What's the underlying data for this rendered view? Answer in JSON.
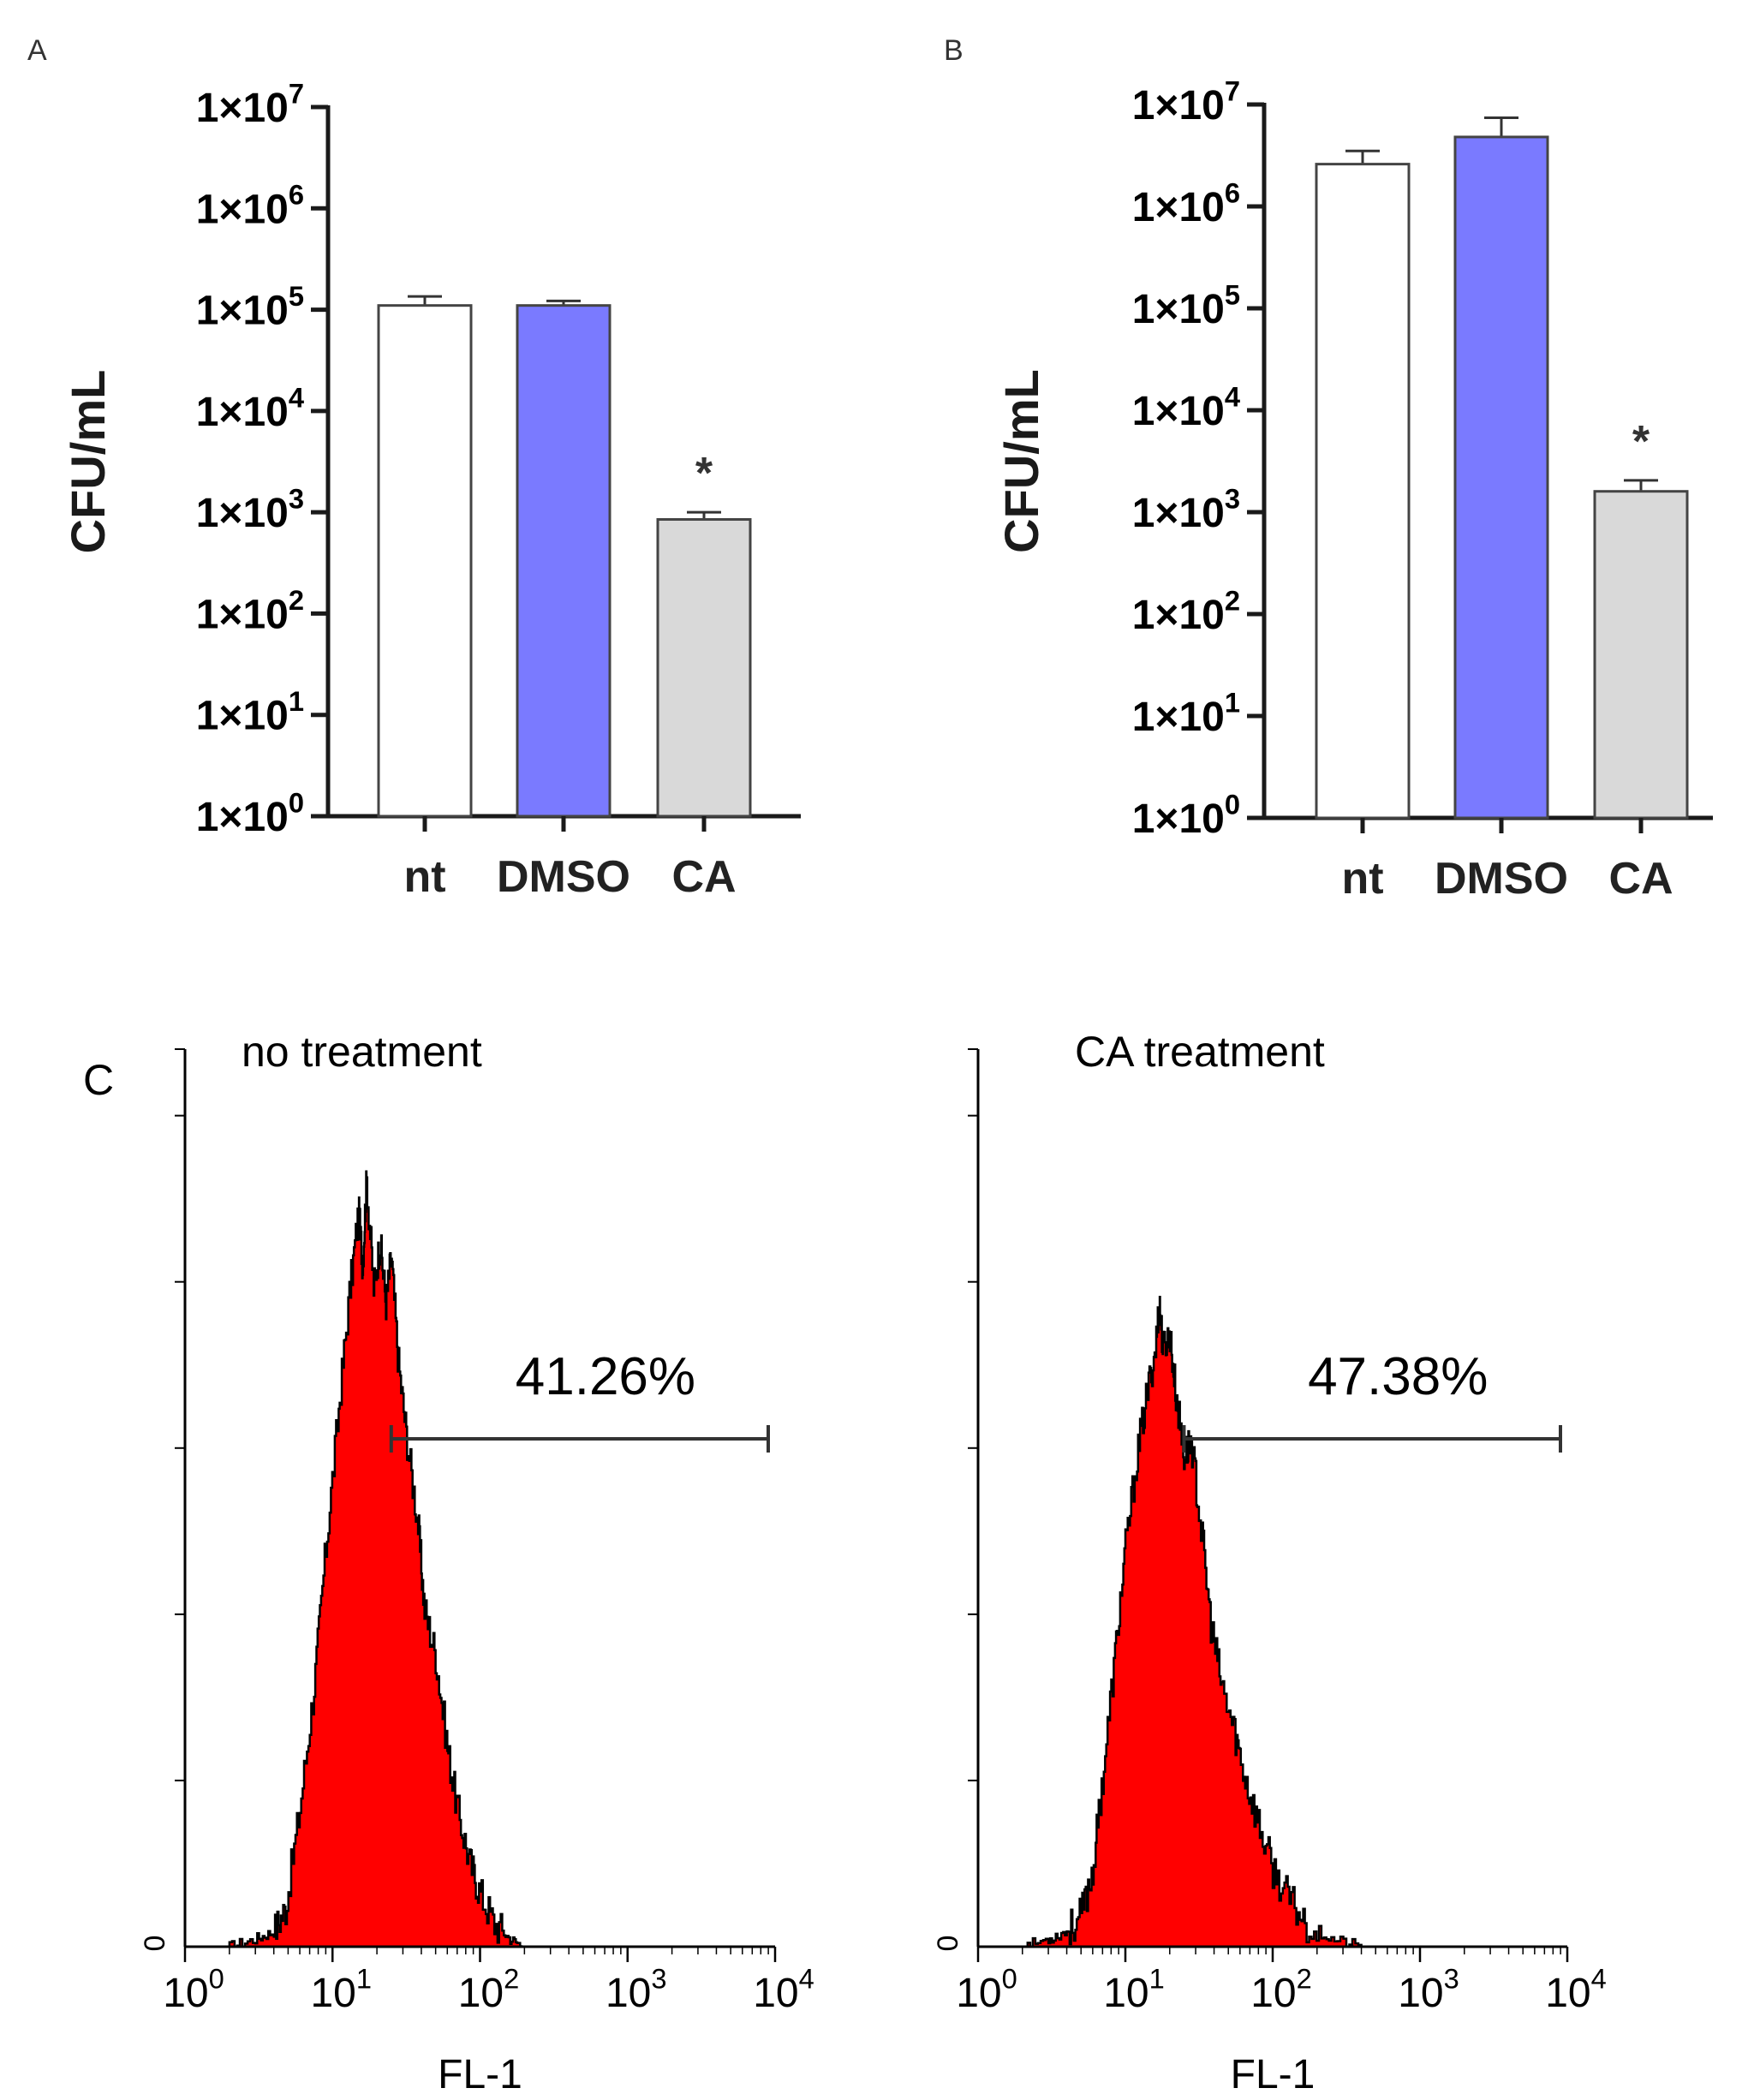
{
  "chart_data": [
    {
      "panel": "A",
      "type": "bar",
      "yscale": "log",
      "ylabel": "CFU/mL",
      "ylim": [
        1,
        10000000
      ],
      "yticks": [
        {
          "value": 1,
          "base": "1×10",
          "exp": "0"
        },
        {
          "value": 10,
          "base": "1×10",
          "exp": "1"
        },
        {
          "value": 100,
          "base": "1×10",
          "exp": "2"
        },
        {
          "value": 1000,
          "base": "1×10",
          "exp": "3"
        },
        {
          "value": 10000,
          "base": "1×10",
          "exp": "4"
        },
        {
          "value": 100000,
          "base": "1×10",
          "exp": "5"
        },
        {
          "value": 1000000,
          "base": "1×10",
          "exp": "6"
        },
        {
          "value": 10000000,
          "base": "1×10",
          "exp": "7"
        }
      ],
      "categories": [
        "nt",
        "DMSO",
        "CA"
      ],
      "values": [
        110000,
        110000,
        850
      ],
      "error_upper": [
        135000,
        122000,
        1000
      ],
      "fill_colors": [
        "#ffffff",
        "#7a7aff",
        "#d9d9d9"
      ],
      "annotations": [
        {
          "category": "CA",
          "text": "*"
        }
      ]
    },
    {
      "panel": "B",
      "type": "bar",
      "yscale": "log",
      "ylabel": "CFU/mL",
      "ylim": [
        1,
        10000000
      ],
      "yticks": [
        {
          "value": 1,
          "base": "1×10",
          "exp": "0"
        },
        {
          "value": 10,
          "base": "1×10",
          "exp": "1"
        },
        {
          "value": 100,
          "base": "1×10",
          "exp": "2"
        },
        {
          "value": 1000,
          "base": "1×10",
          "exp": "3"
        },
        {
          "value": 10000,
          "base": "1×10",
          "exp": "4"
        },
        {
          "value": 100000,
          "base": "1×10",
          "exp": "5"
        },
        {
          "value": 1000000,
          "base": "1×10",
          "exp": "6"
        },
        {
          "value": 10000000,
          "base": "1×10",
          "exp": "7"
        }
      ],
      "categories": [
        "nt",
        "DMSO",
        "CA"
      ],
      "values": [
        2600000,
        4800000,
        1600
      ],
      "error_upper": [
        3500000,
        7400000,
        2050
      ],
      "fill_colors": [
        "#ffffff",
        "#7a7aff",
        "#d9d9d9"
      ],
      "annotations": [
        {
          "category": "CA",
          "text": "*"
        }
      ]
    },
    {
      "panel": "C",
      "type": "histogram",
      "title": "no treatment",
      "xlabel": "FL-1",
      "xscale": "log",
      "xlim": [
        1,
        10000
      ],
      "xticks": [
        {
          "value": 1,
          "base": "10",
          "exp": "0"
        },
        {
          "value": 10,
          "base": "10",
          "exp": "1"
        },
        {
          "value": 100,
          "base": "10",
          "exp": "2"
        },
        {
          "value": 1000,
          "base": "10",
          "exp": "3"
        },
        {
          "value": 10000,
          "base": "10",
          "exp": "4"
        }
      ],
      "ytick_label": "0",
      "fill_color": "#ff0000",
      "gate": {
        "from": 25,
        "to": 10000,
        "label": "41.26%"
      },
      "distribution": {
        "peak_fl1": 20,
        "peak_relative_height": 1.0
      },
      "profile": [
        [
          2,
          0
        ],
        [
          3,
          0.01
        ],
        [
          4,
          0.02
        ],
        [
          4.8,
          0.05
        ],
        [
          6,
          0.18
        ],
        [
          7.5,
          0.34
        ],
        [
          9,
          0.52
        ],
        [
          11,
          0.7
        ],
        [
          13,
          0.85
        ],
        [
          15,
          0.96
        ],
        [
          16,
          0.89
        ],
        [
          17,
          1.0
        ],
        [
          19,
          0.86
        ],
        [
          21,
          0.92
        ],
        [
          23,
          0.84
        ],
        [
          25,
          0.9
        ],
        [
          28,
          0.76
        ],
        [
          32,
          0.66
        ],
        [
          38,
          0.55
        ],
        [
          42,
          0.44
        ],
        [
          50,
          0.38
        ],
        [
          60,
          0.26
        ],
        [
          70,
          0.18
        ],
        [
          85,
          0.11
        ],
        [
          100,
          0.07
        ],
        [
          125,
          0.03
        ],
        [
          160,
          0.01
        ],
        [
          200,
          0.0
        ]
      ]
    },
    {
      "panel": "C",
      "type": "histogram",
      "title": "CA treatment",
      "xlabel": "FL-1",
      "xscale": "log",
      "xlim": [
        1,
        10000
      ],
      "xticks": [
        {
          "value": 1,
          "base": "10",
          "exp": "0"
        },
        {
          "value": 10,
          "base": "10",
          "exp": "1"
        },
        {
          "value": 100,
          "base": "10",
          "exp": "2"
        },
        {
          "value": 1000,
          "base": "10",
          "exp": "3"
        },
        {
          "value": 10000,
          "base": "10",
          "exp": "4"
        }
      ],
      "ytick_label": "0",
      "fill_color": "#ff0000",
      "gate": {
        "from": 25,
        "to": 10000,
        "label": "47.38%"
      },
      "distribution": {
        "peak_fl1": 19,
        "peak_relative_height": 0.8
      },
      "profile": [
        [
          2,
          0
        ],
        [
          3,
          0.01
        ],
        [
          4,
          0.02
        ],
        [
          5,
          0.04
        ],
        [
          6,
          0.1
        ],
        [
          7,
          0.22
        ],
        [
          8.5,
          0.38
        ],
        [
          10,
          0.52
        ],
        [
          12,
          0.64
        ],
        [
          14,
          0.72
        ],
        [
          16,
          0.78
        ],
        [
          17,
          0.84
        ],
        [
          18,
          0.78
        ],
        [
          20,
          0.8
        ],
        [
          22,
          0.72
        ],
        [
          25,
          0.64
        ],
        [
          28,
          0.66
        ],
        [
          32,
          0.56
        ],
        [
          38,
          0.42
        ],
        [
          45,
          0.34
        ],
        [
          55,
          0.28
        ],
        [
          65,
          0.22
        ],
        [
          80,
          0.16
        ],
        [
          100,
          0.1
        ],
        [
          130,
          0.06
        ],
        [
          170,
          0.03
        ],
        [
          250,
          0.01
        ],
        [
          400,
          0.0
        ]
      ]
    }
  ],
  "panel_labels": {
    "a": "A",
    "b": "B",
    "c": "C"
  }
}
